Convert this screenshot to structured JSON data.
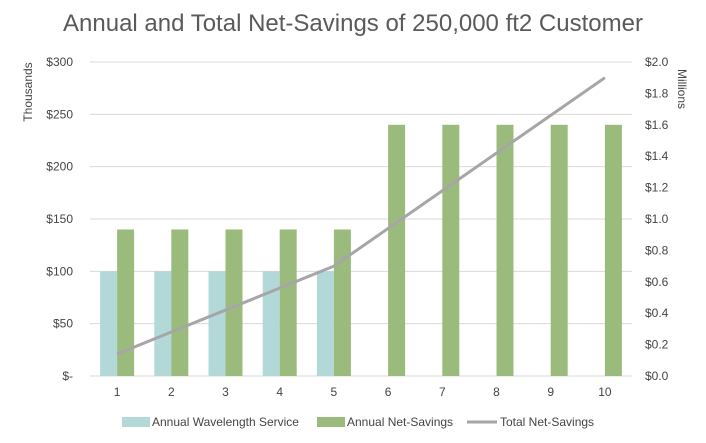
{
  "chart_data": {
    "type": "bar",
    "title": "Annual and Total Net-Savings of 250,000 ft2 Customer",
    "categories": [
      "1",
      "2",
      "3",
      "4",
      "5",
      "6",
      "7",
      "8",
      "9",
      "10"
    ],
    "left_axis": {
      "label": "Thousands",
      "ylim": [
        0,
        300
      ],
      "ticks": [
        0,
        50,
        100,
        150,
        200,
        250,
        300
      ],
      "tick_labels": [
        "$-",
        "$50",
        "$100",
        "$150",
        "$200",
        "$250",
        "$300"
      ]
    },
    "right_axis": {
      "label": "Millions",
      "ylim": [
        0,
        2.0
      ],
      "ticks": [
        0,
        0.2,
        0.4,
        0.6,
        0.8,
        1.0,
        1.2,
        1.4,
        1.6,
        1.8,
        2.0
      ],
      "tick_labels": [
        "$0.0",
        "$0.2",
        "$0.4",
        "$0.6",
        "$0.8",
        "$1.0",
        "$1.2",
        "$1.4",
        "$1.6",
        "$1.8",
        "$2.0"
      ]
    },
    "series": [
      {
        "name": "Annual Wavelength Service",
        "type": "bar",
        "axis": "left",
        "color": "#b3d8d8",
        "values": [
          100,
          100,
          100,
          100,
          100,
          0,
          0,
          0,
          0,
          0
        ]
      },
      {
        "name": "Annual Net-Savings",
        "type": "bar",
        "axis": "left",
        "color": "#9bbb7d",
        "values": [
          140,
          140,
          140,
          140,
          140,
          240,
          240,
          240,
          240,
          240
        ]
      },
      {
        "name": "Total Net-Savings",
        "type": "line",
        "axis": "right",
        "color": "#a6a6a6",
        "values": [
          0.14,
          0.28,
          0.42,
          0.56,
          0.7,
          0.94,
          1.18,
          1.42,
          1.66,
          1.9
        ]
      }
    ],
    "grid": true,
    "legend": "bottom"
  }
}
